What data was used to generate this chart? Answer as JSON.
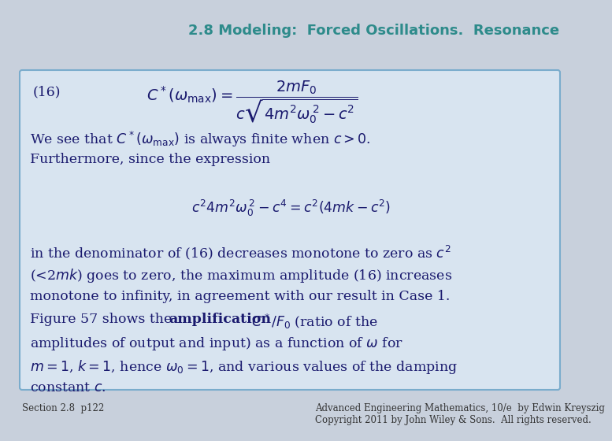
{
  "title": "2.8 Modeling:  Forced Oscillations.  Resonance",
  "title_color": "#2e8b8b",
  "title_fontsize": 13,
  "bg_color": "#d8e4f0",
  "outer_bg": "#c8d0dc",
  "box_border_color": "#7aaccc",
  "footer_left": "Section 2.8  p122",
  "footer_right": "Advanced Engineering Mathematics, 10/e  by Edwin Kreyszig\nCopyright 2011 by John Wiley & Sons.  All rights reserved.",
  "footer_fontsize": 8.5,
  "text_color": "#1a1a6e",
  "body_fontsize": 12.5
}
